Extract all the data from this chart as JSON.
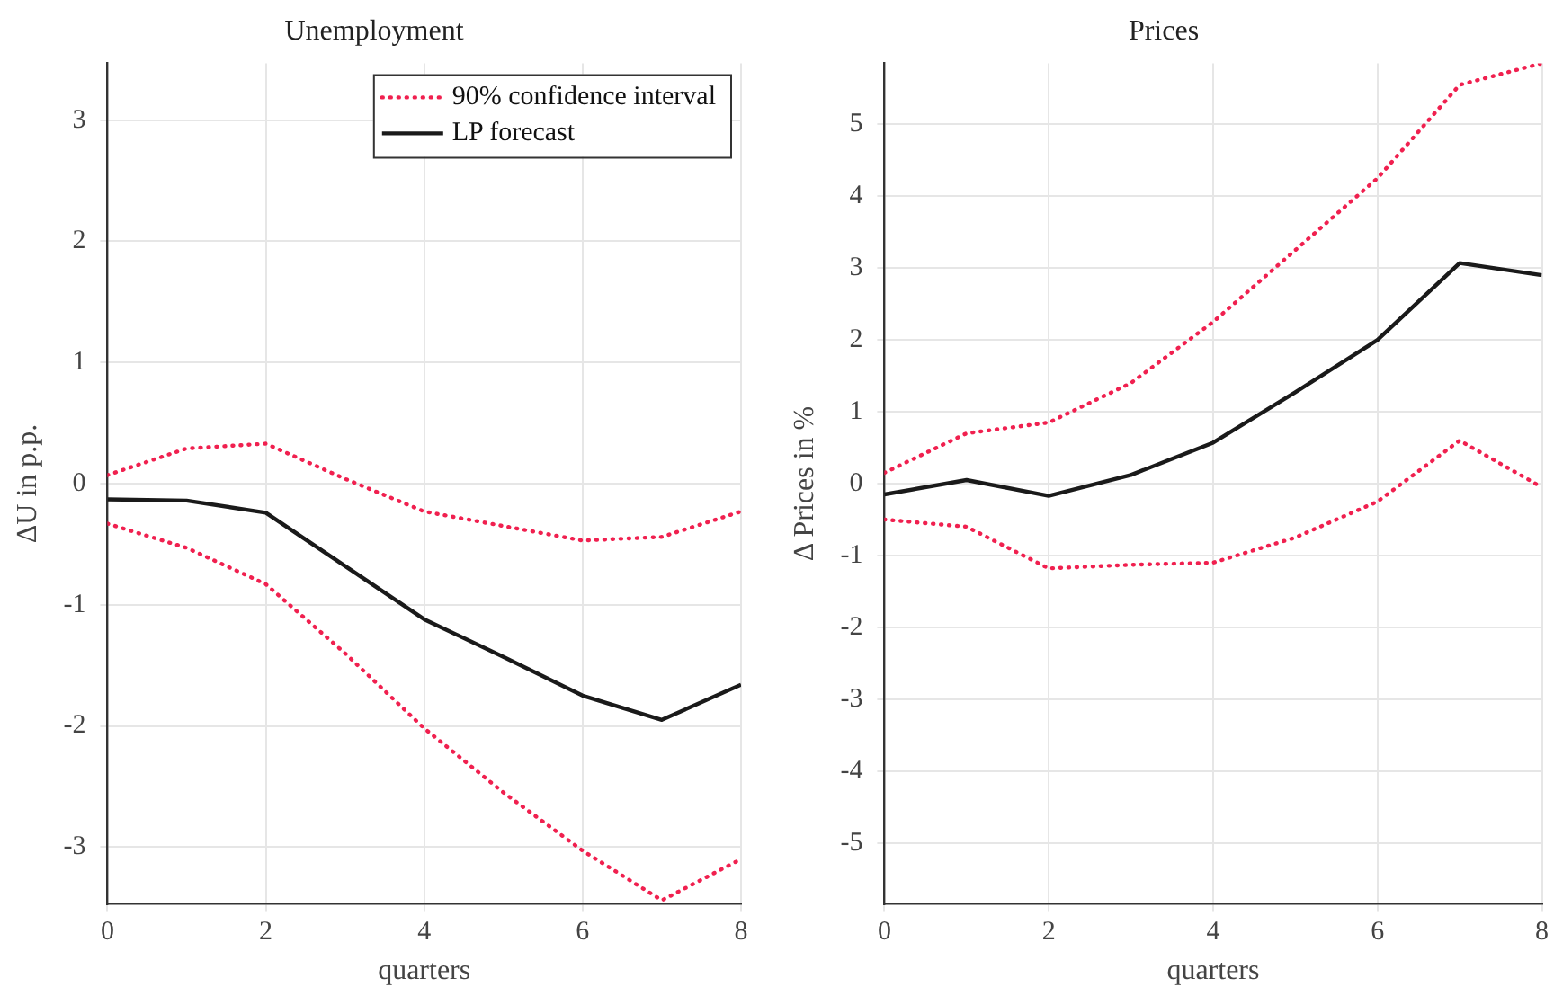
{
  "chart_data": [
    {
      "type": "line",
      "title": "Unemployment",
      "xlabel": "quarters",
      "ylabel": "ΔU in p.p.",
      "x": [
        0,
        1,
        2,
        3,
        4,
        5,
        6,
        7,
        8
      ],
      "xlim": [
        0,
        8
      ],
      "xticks": [
        0,
        2,
        4,
        6,
        8
      ],
      "ylim": [
        -3.47,
        3.47
      ],
      "yticks": [
        -3,
        -2,
        -1,
        0,
        1,
        2,
        3
      ],
      "grid": true,
      "legend": "top right",
      "marker": "none",
      "series": [
        {
          "name": "90% confidence interval",
          "color": "#f0204f",
          "line_style": "dotted",
          "values": [
            0.07,
            0.29,
            0.33,
            0.04,
            -0.23,
            -0.35,
            -0.47,
            -0.44,
            -0.23
          ]
        },
        {
          "name": "LP forecast",
          "color": "#1a1a1a",
          "line_style": "solid",
          "values": [
            -0.13,
            -0.14,
            -0.24,
            -0.68,
            -1.12,
            -1.43,
            -1.75,
            -1.95,
            -1.66
          ]
        },
        {
          "color": "#f0204f",
          "line_style": "dotted",
          "values": [
            -0.33,
            -0.53,
            -0.83,
            -1.4,
            -2.02,
            -2.55,
            -3.03,
            -3.44,
            -3.1
          ]
        }
      ]
    },
    {
      "type": "line",
      "title": "Prices",
      "xlabel": "quarters",
      "ylabel": "Δ Prices in %",
      "x": [
        0,
        1,
        2,
        3,
        4,
        5,
        6,
        7,
        8
      ],
      "xlim": [
        0,
        8
      ],
      "xticks": [
        0,
        2,
        4,
        6,
        8
      ],
      "ylim": [
        -5.85,
        5.85
      ],
      "yticks": [
        -5,
        -4,
        -3,
        -2,
        -1,
        0,
        1,
        2,
        3,
        4,
        5
      ],
      "grid": true,
      "marker": "none",
      "series": [
        {
          "color": "#f0204f",
          "line_style": "dotted",
          "values": [
            0.15,
            0.7,
            0.85,
            1.4,
            2.25,
            3.25,
            4.25,
            5.55,
            5.85
          ]
        },
        {
          "color": "#1a1a1a",
          "line_style": "solid",
          "values": [
            -0.15,
            0.05,
            -0.17,
            0.12,
            0.57,
            1.27,
            2.0,
            3.07,
            2.9
          ]
        },
        {
          "color": "#f0204f",
          "line_style": "dotted",
          "values": [
            -0.5,
            -0.6,
            -1.18,
            -1.13,
            -1.1,
            -0.75,
            -0.25,
            0.6,
            -0.05
          ]
        }
      ]
    }
  ]
}
